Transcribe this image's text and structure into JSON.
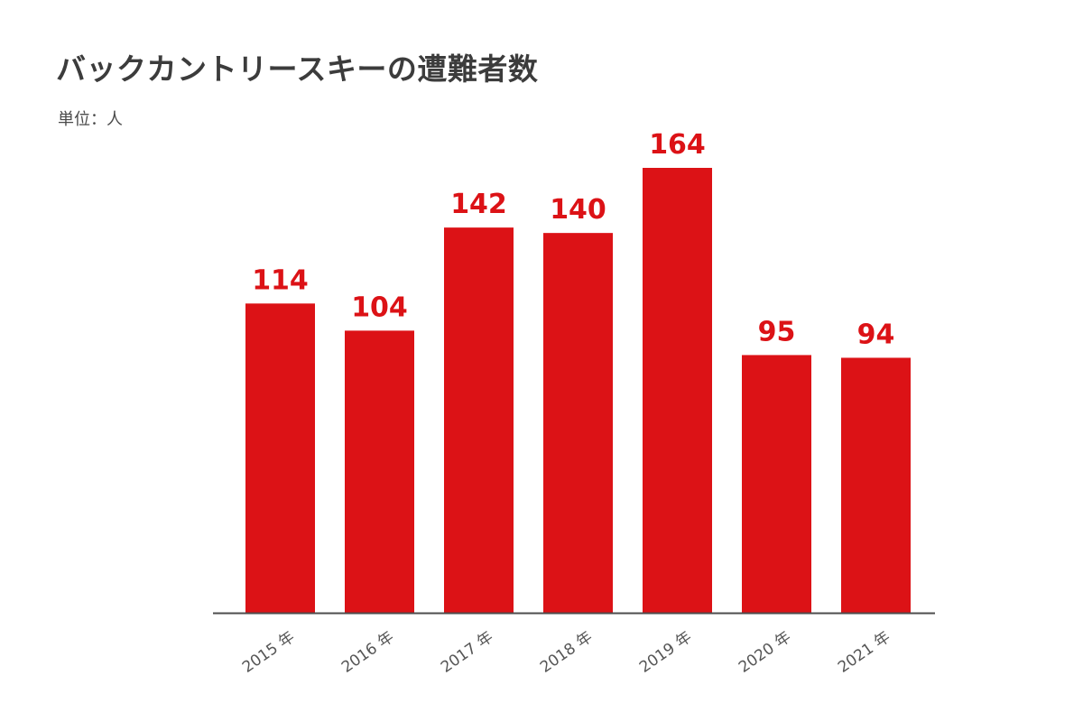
{
  "chart_data": {
    "type": "bar",
    "title": "バックカントリースキーの遭難者数",
    "unit_label": "単位：人",
    "categories": [
      "2015 年",
      "2016 年",
      "2017 年",
      "2018 年",
      "2019 年",
      "2020 年",
      "2021 年"
    ],
    "values": [
      114,
      104,
      142,
      140,
      164,
      95,
      94
    ],
    "data_labels": [
      "114",
      "104",
      "142",
      "140",
      "164",
      "95",
      "94"
    ],
    "xlabel": "",
    "ylabel": "",
    "ylim": [
      0,
      164
    ],
    "grid": false,
    "legend": "none",
    "colors": {
      "bar": "#dc1216",
      "label": "#dc1216",
      "axis": "#4d4d4d",
      "title": "#3c3c3c"
    }
  }
}
